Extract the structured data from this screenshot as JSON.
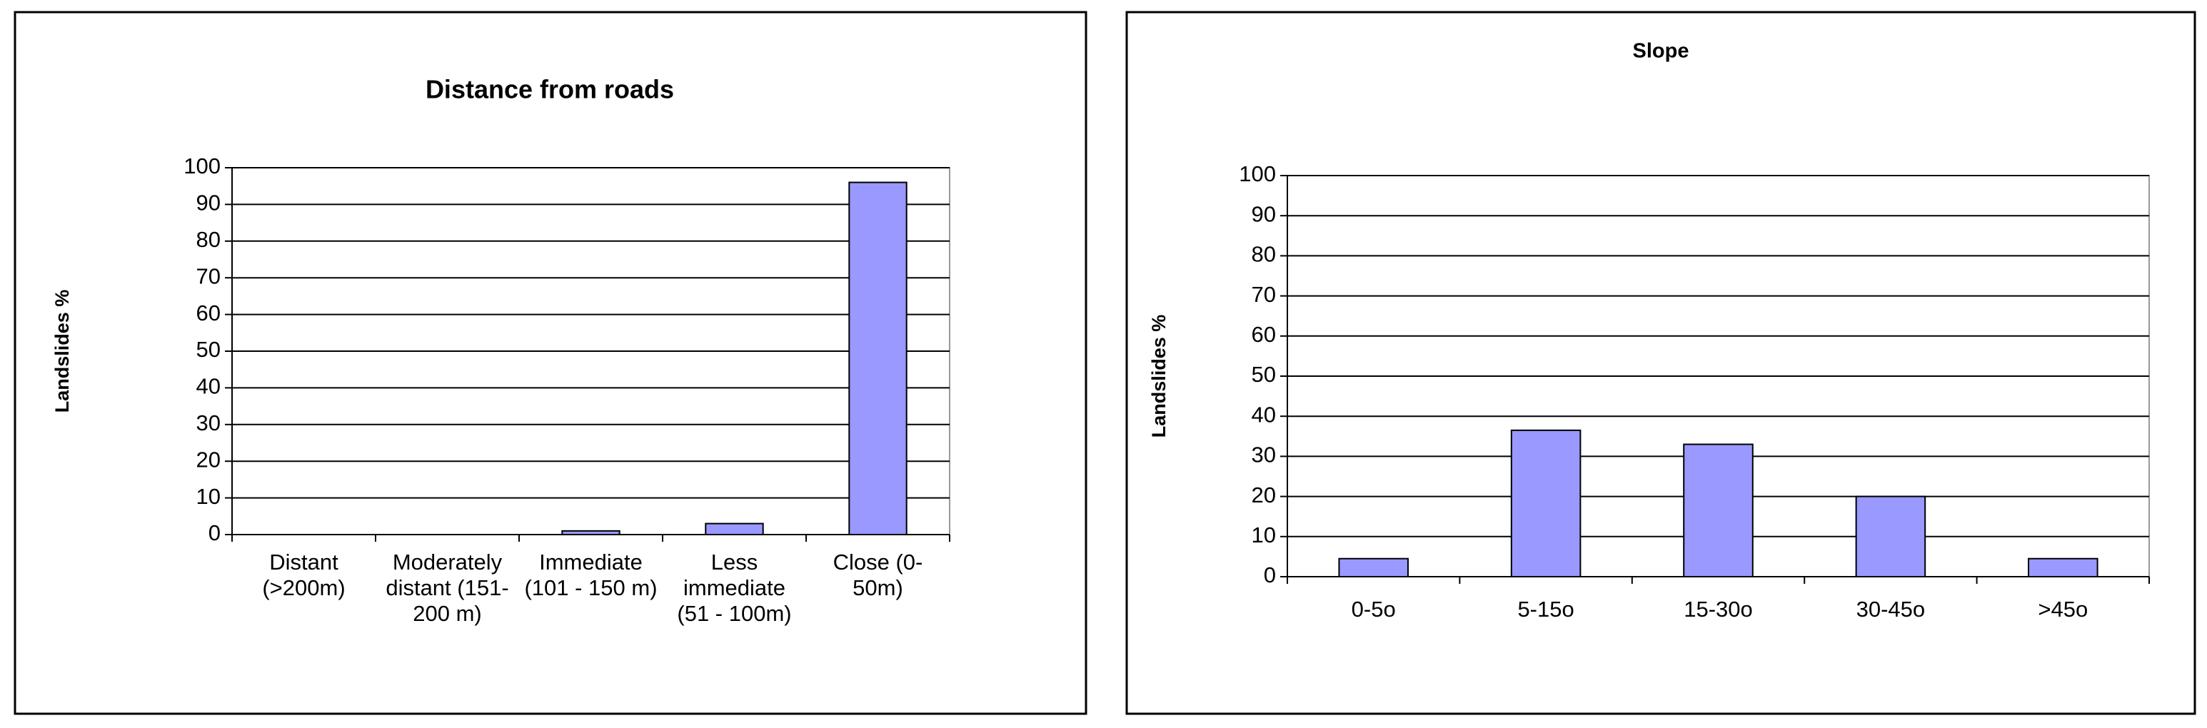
{
  "chart_data": [
    {
      "type": "bar",
      "title": "Distance from roads",
      "y_label": "Landslides %",
      "categories": [
        "Distant (>200m)",
        "Moderately distant (151-200 m)",
        "Immediate (101 - 150 m)",
        "Less immediate (51 - 100m)",
        "Close (0-50m)"
      ],
      "values": [
        0,
        0,
        1,
        3,
        96
      ],
      "color": "#9999ff",
      "ylim": [
        0,
        100
      ],
      "yticks": [
        0,
        10,
        20,
        30,
        40,
        50,
        60,
        70,
        80,
        90,
        100
      ],
      "grid": true
    },
    {
      "type": "bar",
      "title": "Slope",
      "y_label": "Landslides %",
      "categories": [
        "0-5o",
        "5-15o",
        "15-30o",
        "30-45o",
        ">45o"
      ],
      "values": [
        4.5,
        36.5,
        33,
        20,
        4.5
      ],
      "color": "#9999ff",
      "ylim": [
        0,
        100
      ],
      "yticks": [
        0,
        10,
        20,
        30,
        40,
        50,
        60,
        70,
        80,
        90,
        100
      ],
      "grid": true
    }
  ]
}
